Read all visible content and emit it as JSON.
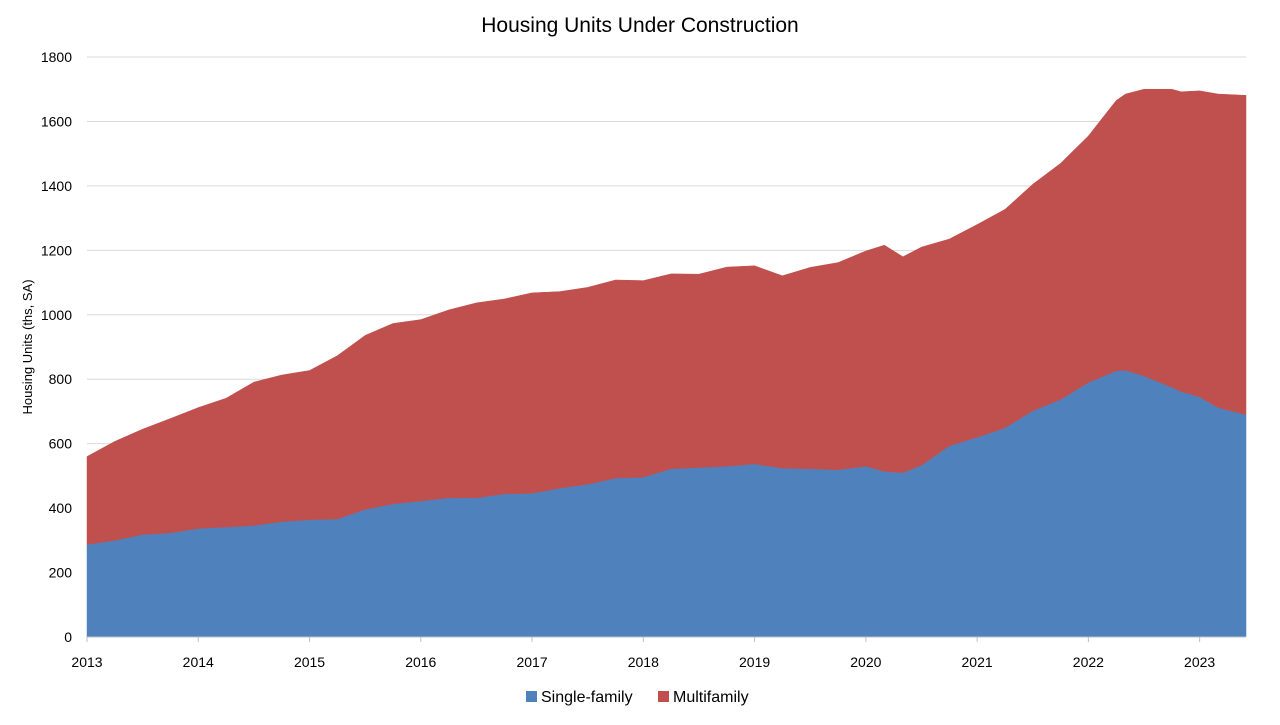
{
  "chart_data": {
    "type": "area",
    "stacked": true,
    "title": "Housing Units Under Construction",
    "ylabel": "Housing Units (ths, SA)",
    "xlabel": "",
    "ylim": [
      0,
      1800
    ],
    "yticks": [
      0,
      200,
      400,
      600,
      800,
      1000,
      1200,
      1400,
      1600,
      1800
    ],
    "xlim": [
      2013.0,
      2023.4167
    ],
    "xticks": [
      2013,
      2014,
      2015,
      2016,
      2017,
      2018,
      2019,
      2020,
      2021,
      2022,
      2023
    ],
    "grid": "horizontal",
    "legend_position": "bottom",
    "x": [
      2013.0,
      2013.25,
      2013.5,
      2013.75,
      2014.0,
      2014.25,
      2014.5,
      2014.75,
      2015.0,
      2015.25,
      2015.5,
      2015.75,
      2016.0,
      2016.25,
      2016.5,
      2016.75,
      2017.0,
      2017.25,
      2017.5,
      2017.75,
      2018.0,
      2018.25,
      2018.5,
      2018.75,
      2019.0,
      2019.25,
      2019.5,
      2019.75,
      2020.0,
      2020.1667,
      2020.3333,
      2020.5,
      2020.75,
      2021.0,
      2021.25,
      2021.5,
      2021.75,
      2022.0,
      2022.25,
      2022.3333,
      2022.5,
      2022.75,
      2022.8333,
      2023.0,
      2023.1667,
      2023.4167
    ],
    "series": [
      {
        "name": "Single-family",
        "color": "#4f81bd",
        "values": [
          287,
          300,
          318,
          323,
          337,
          341,
          346,
          358,
          364,
          366,
          396,
          413,
          422,
          432,
          432,
          444,
          446,
          462,
          474,
          493,
          496,
          522,
          526,
          530,
          537,
          524,
          522,
          519,
          530,
          514,
          510,
          533,
          593,
          620,
          649,
          702,
          737,
          790,
          826,
          828,
          810,
          775,
          762,
          745,
          712,
          690
        ]
      },
      {
        "name": "Multifamily",
        "color": "#c0504d",
        "values": [
          273,
          307,
          327,
          355,
          375,
          400,
          445,
          455,
          463,
          507,
          540,
          560,
          563,
          583,
          605,
          605,
          622,
          610,
          611,
          615,
          610,
          605,
          600,
          618,
          615,
          597,
          625,
          643,
          668,
          702,
          670,
          677,
          642,
          660,
          678,
          703,
          733,
          765,
          839,
          857,
          890,
          925,
          930,
          950,
          973,
          991
        ]
      }
    ]
  }
}
